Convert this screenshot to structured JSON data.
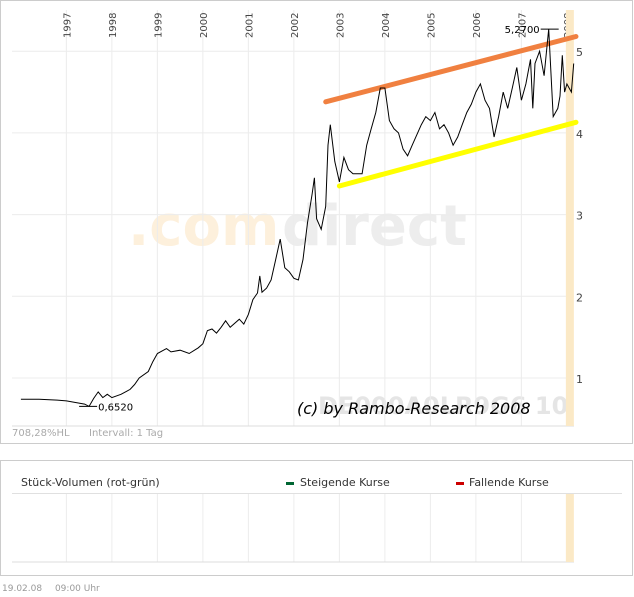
{
  "watermark": {
    "part1": ".com",
    "part2": "direct"
  },
  "copyright": "(c) by Rambo-Research 2008",
  "symbol_ghost": "DE000A0LR9G6 10",
  "info": {
    "perf": "708,28%HL",
    "interval": "Intervall: 1 Tag"
  },
  "footer": {
    "date": "19.02.08",
    "time": "09:00 Uhr"
  },
  "volume_panel": {
    "title": "Stück-Volumen (rot-grün)",
    "legend_up": "Steigende Kurse",
    "legend_down": "Fallende Kurse",
    "color_up": "#006633",
    "color_down": "#cc0000"
  },
  "chart_data": {
    "type": "line",
    "x_axis_labels": [
      "1997",
      "1998",
      "1999",
      "2000",
      "2001",
      "2002",
      "2003",
      "2004",
      "2005",
      "2006",
      "2007",
      "2008"
    ],
    "y_ticks": [
      1,
      2,
      3,
      4,
      5
    ],
    "ylim": [
      0.45,
      5.5
    ],
    "xlim": [
      1996.0,
      2008.2
    ],
    "grid": true,
    "annotations": [
      {
        "label": "0,6520",
        "x": 1997.5,
        "y": 0.652
      },
      {
        "label": "5,2700",
        "x": 2007.6,
        "y": 5.27
      }
    ],
    "series": [
      {
        "color": "#000000",
        "points": [
          [
            1996.0,
            0.74
          ],
          [
            1996.4,
            0.74
          ],
          [
            1996.8,
            0.73
          ],
          [
            1997.0,
            0.72
          ],
          [
            1997.2,
            0.7
          ],
          [
            1997.4,
            0.68
          ],
          [
            1997.5,
            0.652
          ],
          [
            1997.6,
            0.75
          ],
          [
            1997.7,
            0.83
          ],
          [
            1997.8,
            0.76
          ],
          [
            1997.9,
            0.8
          ],
          [
            1998.0,
            0.76
          ],
          [
            1998.2,
            0.8
          ],
          [
            1998.4,
            0.86
          ],
          [
            1998.5,
            0.92
          ],
          [
            1998.6,
            1.0
          ],
          [
            1998.8,
            1.08
          ],
          [
            1998.9,
            1.2
          ],
          [
            1999.0,
            1.3
          ],
          [
            1999.2,
            1.36
          ],
          [
            1999.3,
            1.32
          ],
          [
            1999.5,
            1.34
          ],
          [
            1999.7,
            1.3
          ],
          [
            1999.9,
            1.37
          ],
          [
            2000.0,
            1.42
          ],
          [
            2000.1,
            1.58
          ],
          [
            2000.2,
            1.6
          ],
          [
            2000.3,
            1.55
          ],
          [
            2000.4,
            1.62
          ],
          [
            2000.5,
            1.7
          ],
          [
            2000.6,
            1.62
          ],
          [
            2000.8,
            1.72
          ],
          [
            2000.9,
            1.66
          ],
          [
            2001.0,
            1.78
          ],
          [
            2001.1,
            1.96
          ],
          [
            2001.2,
            2.04
          ],
          [
            2001.25,
            2.25
          ],
          [
            2001.3,
            2.05
          ],
          [
            2001.4,
            2.1
          ],
          [
            2001.5,
            2.2
          ],
          [
            2001.6,
            2.45
          ],
          [
            2001.7,
            2.7
          ],
          [
            2001.8,
            2.35
          ],
          [
            2001.9,
            2.3
          ],
          [
            2002.0,
            2.22
          ],
          [
            2002.1,
            2.2
          ],
          [
            2002.2,
            2.45
          ],
          [
            2002.3,
            2.9
          ],
          [
            2002.4,
            3.25
          ],
          [
            2002.45,
            3.45
          ],
          [
            2002.5,
            2.95
          ],
          [
            2002.6,
            2.82
          ],
          [
            2002.7,
            3.1
          ],
          [
            2002.75,
            3.85
          ],
          [
            2002.8,
            4.1
          ],
          [
            2002.9,
            3.65
          ],
          [
            2003.0,
            3.4
          ],
          [
            2003.1,
            3.7
          ],
          [
            2003.2,
            3.55
          ],
          [
            2003.3,
            3.5
          ],
          [
            2003.5,
            3.5
          ],
          [
            2003.6,
            3.85
          ],
          [
            2003.7,
            4.05
          ],
          [
            2003.8,
            4.25
          ],
          [
            2003.9,
            4.55
          ],
          [
            2004.0,
            4.55
          ],
          [
            2004.1,
            4.15
          ],
          [
            2004.2,
            4.05
          ],
          [
            2004.3,
            4.0
          ],
          [
            2004.4,
            3.8
          ],
          [
            2004.5,
            3.72
          ],
          [
            2004.6,
            3.85
          ],
          [
            2004.8,
            4.1
          ],
          [
            2004.9,
            4.2
          ],
          [
            2005.0,
            4.15
          ],
          [
            2005.1,
            4.25
          ],
          [
            2005.2,
            4.05
          ],
          [
            2005.3,
            4.1
          ],
          [
            2005.4,
            4.0
          ],
          [
            2005.5,
            3.85
          ],
          [
            2005.6,
            3.95
          ],
          [
            2005.7,
            4.1
          ],
          [
            2005.8,
            4.25
          ],
          [
            2005.9,
            4.35
          ],
          [
            2006.0,
            4.5
          ],
          [
            2006.1,
            4.6
          ],
          [
            2006.2,
            4.4
          ],
          [
            2006.3,
            4.3
          ],
          [
            2006.4,
            3.95
          ],
          [
            2006.5,
            4.2
          ],
          [
            2006.6,
            4.5
          ],
          [
            2006.7,
            4.3
          ],
          [
            2006.8,
            4.55
          ],
          [
            2006.9,
            4.8
          ],
          [
            2007.0,
            4.4
          ],
          [
            2007.1,
            4.6
          ],
          [
            2007.2,
            4.9
          ],
          [
            2007.25,
            4.3
          ],
          [
            2007.3,
            4.85
          ],
          [
            2007.4,
            5.0
          ],
          [
            2007.5,
            4.7
          ],
          [
            2007.6,
            5.27
          ],
          [
            2007.7,
            4.2
          ],
          [
            2007.75,
            4.25
          ],
          [
            2007.8,
            4.3
          ],
          [
            2007.85,
            4.45
          ],
          [
            2007.9,
            4.95
          ],
          [
            2007.95,
            4.5
          ],
          [
            2008.0,
            4.6
          ],
          [
            2008.05,
            4.55
          ],
          [
            2008.1,
            4.5
          ],
          [
            2008.15,
            4.85
          ]
        ]
      }
    ],
    "trend_lines": [
      {
        "color": "#f08040",
        "from": [
          2002.7,
          4.38
        ],
        "to": [
          2008.2,
          5.18
        ]
      },
      {
        "color": "#ffff00",
        "from": [
          2003.0,
          3.35
        ],
        "to": [
          2008.2,
          4.13
        ]
      }
    ]
  }
}
